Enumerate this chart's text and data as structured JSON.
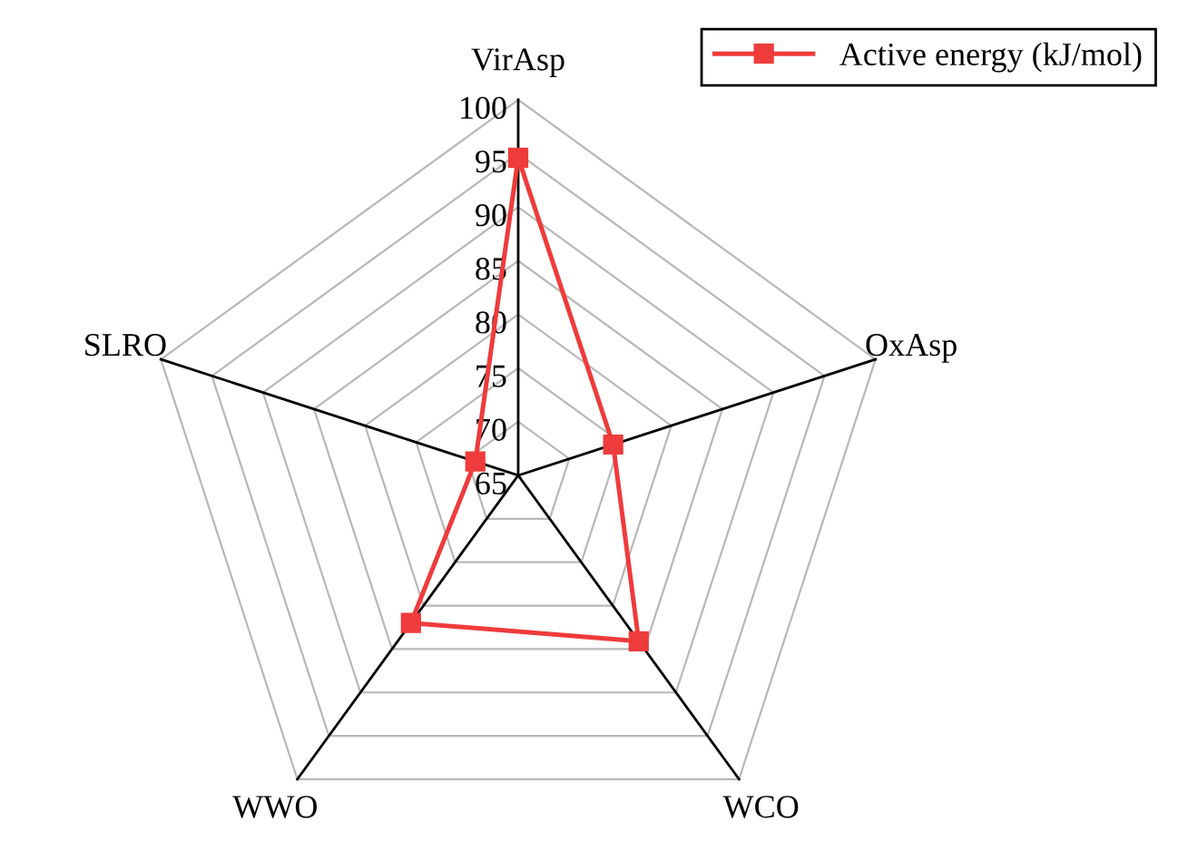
{
  "chart_data": {
    "type": "radar",
    "categories": [
      "VirAsp",
      "OxAsp",
      "WCO",
      "WWO",
      "SLRO"
    ],
    "series": [
      {
        "name": "Active energy (kJ/mol)",
        "color": "#ef3b3b",
        "values": [
          94.6,
          74.3,
          84.1,
          82.0,
          69.2
        ]
      }
    ],
    "ylim": [
      65,
      100
    ],
    "yticks": [
      65,
      70,
      75,
      80,
      85,
      90,
      95,
      100
    ],
    "grid": true,
    "legend": "top right",
    "marker": "square",
    "line_style": "solid"
  }
}
